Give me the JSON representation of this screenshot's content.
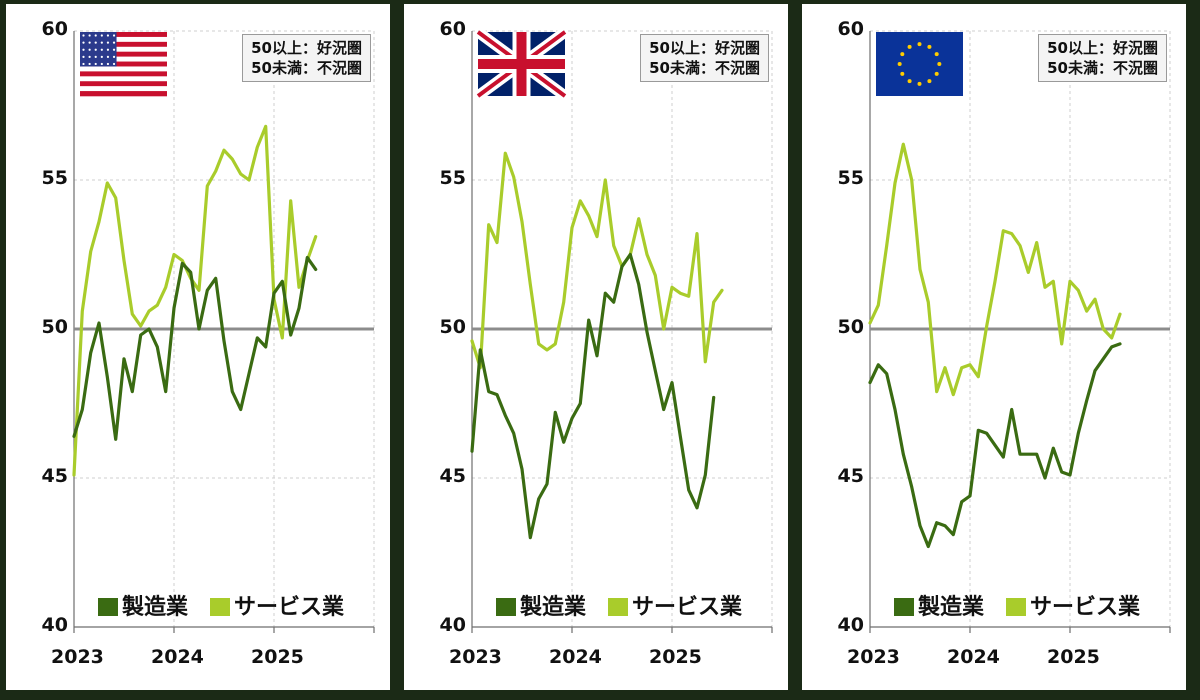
{
  "threshold_note": {
    "line1": "50以上：好況圏",
    "line2": "50未満：不況圏"
  },
  "legend": {
    "manufacturing": "製造業",
    "services": "サービス業"
  },
  "colors": {
    "manufacturing": "#3a6b12",
    "services": "#a9cc2b",
    "threshold": "#8c8c8c",
    "grid": "#cfcfcf",
    "frame_bg": "#1b2a16"
  },
  "chart_data": [
    {
      "type": "line",
      "flag": "us-flag-icon",
      "x_start": "2023-01",
      "x_tick_labels": [
        "2023",
        "2024",
        "2025"
      ],
      "xlim": [
        "2023-01",
        "2026-01"
      ],
      "y_tick_labels": [
        "40",
        "45",
        "50",
        "55",
        "60"
      ],
      "ylim": [
        40,
        60
      ],
      "threshold": 50,
      "series": [
        {
          "name": "製造業",
          "key": "manufacturing",
          "values": [
            46.4,
            47.3,
            49.2,
            50.2,
            48.4,
            46.3,
            49.0,
            47.9,
            49.8,
            50.0,
            49.4,
            47.9,
            50.7,
            52.2,
            51.9,
            50.0,
            51.3,
            51.7,
            49.6,
            47.9,
            47.3,
            48.5,
            49.7,
            49.4,
            51.2,
            51.6,
            49.8,
            50.7,
            52.4,
            52.0
          ]
        },
        {
          "name": "サービス業",
          "key": "services",
          "values": [
            45.1,
            50.6,
            52.6,
            53.6,
            54.9,
            54.4,
            52.3,
            50.5,
            50.1,
            50.6,
            50.8,
            51.4,
            52.5,
            52.3,
            51.7,
            51.3,
            54.8,
            55.3,
            56.0,
            55.7,
            55.2,
            55.0,
            56.1,
            56.8,
            51.0,
            49.7,
            54.3,
            51.4,
            52.3,
            53.1
          ]
        }
      ]
    },
    {
      "type": "line",
      "flag": "uk-flag-icon",
      "x_start": "2023-01",
      "x_tick_labels": [
        "2023",
        "2024",
        "2025"
      ],
      "xlim": [
        "2023-01",
        "2026-01"
      ],
      "y_tick_labels": [
        "40",
        "45",
        "50",
        "55",
        "60"
      ],
      "ylim": [
        40,
        60
      ],
      "threshold": 50,
      "series": [
        {
          "name": "製造業",
          "key": "manufacturing",
          "values": [
            45.9,
            49.3,
            47.9,
            47.8,
            47.1,
            46.5,
            45.3,
            43.0,
            44.3,
            44.8,
            47.2,
            46.2,
            47.0,
            47.5,
            50.3,
            49.1,
            51.2,
            50.9,
            52.1,
            52.5,
            51.5,
            49.9,
            48.6,
            47.3,
            48.2,
            46.4,
            44.6,
            44.0,
            45.1,
            47.7
          ]
        },
        {
          "name": "サービス業",
          "key": "services",
          "values": [
            49.6,
            48.7,
            53.5,
            52.9,
            55.9,
            55.1,
            53.6,
            51.5,
            49.5,
            49.3,
            49.5,
            50.9,
            53.4,
            54.3,
            53.8,
            53.1,
            55.0,
            52.8,
            52.1,
            52.5,
            53.7,
            52.5,
            51.8,
            50.0,
            51.4,
            51.2,
            51.1,
            53.2,
            48.9,
            50.9,
            51.3
          ]
        }
      ]
    },
    {
      "type": "line",
      "flag": "eu-flag-icon",
      "x_start": "2023-01",
      "x_tick_labels": [
        "2023",
        "2024",
        "2025"
      ],
      "xlim": [
        "2023-01",
        "2026-01"
      ],
      "y_tick_labels": [
        "40",
        "45",
        "50",
        "55",
        "60"
      ],
      "ylim": [
        40,
        60
      ],
      "threshold": 50,
      "series": [
        {
          "name": "製造業",
          "key": "manufacturing",
          "values": [
            48.2,
            48.8,
            48.5,
            47.3,
            45.8,
            44.7,
            43.4,
            42.7,
            43.5,
            43.4,
            43.1,
            44.2,
            44.4,
            46.6,
            46.5,
            46.1,
            45.7,
            47.3,
            45.8,
            45.8,
            45.8,
            45.0,
            46.0,
            45.2,
            45.1,
            46.5,
            47.6,
            48.6,
            49.0,
            49.4,
            49.5
          ]
        },
        {
          "name": "サービス業",
          "key": "services",
          "values": [
            50.2,
            50.8,
            52.8,
            54.9,
            56.2,
            55.0,
            52.0,
            50.9,
            47.9,
            48.7,
            47.8,
            48.7,
            48.8,
            48.4,
            50.1,
            51.6,
            53.3,
            53.2,
            52.8,
            51.9,
            52.9,
            51.4,
            51.6,
            49.5,
            51.6,
            51.3,
            50.6,
            51.0,
            50.0,
            49.7,
            50.5
          ]
        }
      ]
    }
  ]
}
